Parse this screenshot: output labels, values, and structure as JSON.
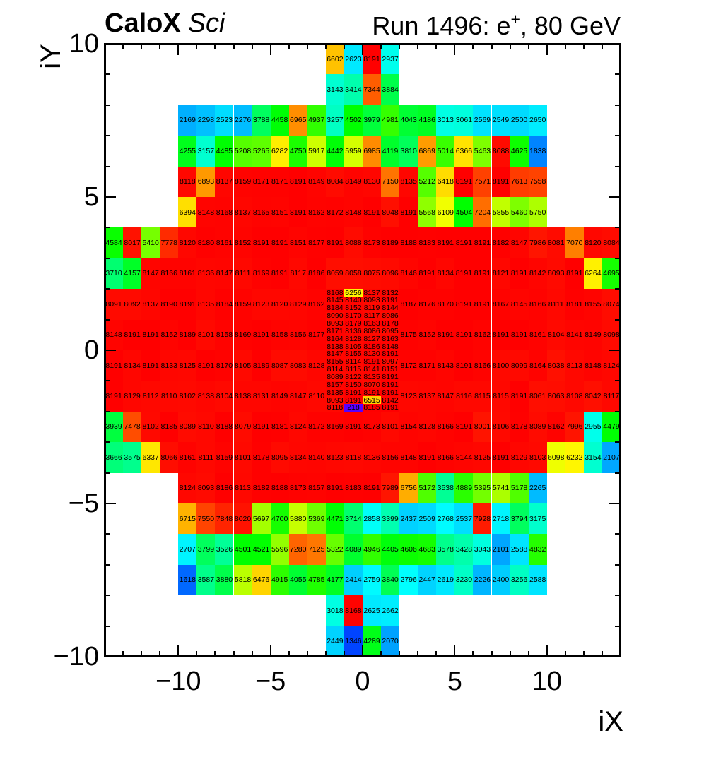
{
  "titles": {
    "left_bold": "CaloX",
    "left_italic": "Sci",
    "right_pre": "Run 1496: e",
    "right_sup": "+",
    "right_post": ", 80 GeV",
    "right_full": "Run 1496: e+, 80 GeV"
  },
  "axes": {
    "x": {
      "title": "iX",
      "range": [
        -14,
        14
      ],
      "tick_values": [
        -10,
        -5,
        0,
        5,
        10
      ],
      "tick_labels": [
        "−10",
        "−5",
        "0",
        "5",
        "10"
      ],
      "minor_step": 1
    },
    "y": {
      "title": "iY",
      "range": [
        -10,
        10
      ],
      "tick_values": [
        10,
        5,
        0,
        -5,
        -10
      ],
      "tick_labels": [
        "10",
        "5",
        "0",
        "−5",
        "−10"
      ],
      "minor_step": 1
    },
    "z": {
      "min": 0,
      "max": 8191
    }
  },
  "chart_data": {
    "type": "heatmap",
    "title": "CaloX Sci",
    "subtitle": "Run 1496: e+, 80 GeV",
    "xlabel": "iX",
    "ylabel": "iY",
    "x_range": [
      -14,
      14
    ],
    "y_range": [
      -10,
      10
    ],
    "z_range": [
      0,
      8191
    ],
    "grid": false,
    "palette_stops": [
      [
        0,
        268
      ],
      [
        0.1,
        240
      ],
      [
        0.2,
        215
      ],
      [
        0.3,
        190
      ],
      [
        0.35,
        178
      ],
      [
        0.42,
        160
      ],
      [
        0.48,
        135
      ],
      [
        0.55,
        120
      ],
      [
        0.62,
        105
      ],
      [
        0.7,
        80
      ],
      [
        0.76,
        58
      ],
      [
        0.82,
        42
      ],
      [
        0.87,
        28
      ],
      [
        0.93,
        14
      ],
      [
        1,
        0
      ]
    ],
    "palette_saturation": "100%",
    "palette_lightness": "50%",
    "rows": [
      {
        "iy": 9,
        "x0": -2,
        "values": [
          6602,
          2623,
          8191,
          2937
        ]
      },
      {
        "iy": 8,
        "x0": -2,
        "values": [
          3143,
          3414,
          7344,
          3884
        ]
      },
      {
        "iy": 7,
        "x0": -10,
        "values": [
          2169,
          2298,
          2523,
          2276,
          3788,
          4458,
          6965,
          4937,
          3257,
          4502,
          3979,
          4981,
          4043,
          4186,
          3013,
          3061,
          2569,
          2549,
          2500,
          2650
        ]
      },
      {
        "iy": 6,
        "x0": -10,
        "values": [
          4255,
          3157,
          4485,
          5208,
          5265,
          6282,
          4750,
          5917,
          4442,
          5959,
          6985,
          4119,
          3810,
          6869,
          5014,
          6366,
          5463,
          8088,
          4625,
          1838
        ]
      },
      {
        "iy": 5,
        "x0": -10,
        "values": [
          8118,
          6893,
          8137,
          8159,
          8171,
          8171,
          8191,
          8149,
          8084,
          8149,
          8130,
          7150,
          8135,
          5212,
          6418,
          8191,
          7571,
          8191,
          7613,
          7558
        ]
      },
      {
        "iy": 4,
        "x0": -10,
        "values": [
          6394,
          8148,
          8168,
          8137,
          8165,
          8151,
          8191,
          8162,
          8172,
          8148,
          8191,
          8048,
          8191,
          5568,
          6109,
          4504,
          7204,
          5855,
          5460,
          5750
        ]
      },
      {
        "iy": 3,
        "x0": -14,
        "values": [
          4584,
          8017,
          5410,
          7778,
          8120,
          8180,
          8161,
          8152,
          8191,
          8191,
          8151,
          8177,
          8191,
          8088,
          8173,
          8189,
          8188,
          8183,
          8191,
          8191,
          8191,
          8182,
          8147,
          7986,
          8081,
          7070,
          8120,
          8084
        ]
      },
      {
        "iy": 2,
        "x0": -14,
        "values": [
          3710,
          4157,
          8147,
          8166,
          8161,
          8136,
          8147,
          8111,
          8169,
          8191,
          8117,
          8186,
          8059,
          8058,
          8075,
          8096,
          8146,
          8191,
          8134,
          8191,
          8191,
          8121,
          8191,
          8142,
          8093,
          8191,
          6264,
          4695
        ]
      },
      {
        "iy": 1,
        "x0": -14,
        "values": [
          8091,
          8092,
          8137,
          8190,
          8191,
          8135,
          8184,
          8159,
          8123,
          8120,
          8129,
          8162
        ]
      },
      {
        "iy": 1,
        "x0": 2,
        "values": [
          8187,
          8176,
          8170,
          8191,
          8191,
          8167,
          8145,
          8166,
          8111,
          8181,
          8155,
          8074
        ]
      },
      {
        "iy": 0,
        "x0": -14,
        "values": [
          8148,
          8191,
          8191,
          8152,
          8189,
          8101,
          8158,
          8169,
          8191,
          8158,
          8156,
          8177
        ]
      },
      {
        "iy": 0,
        "x0": 2,
        "values": [
          8175,
          8152,
          8191,
          8191,
          8162,
          8191,
          8191,
          8161,
          8104,
          8141,
          8149,
          8098
        ]
      },
      {
        "iy": -1,
        "x0": -14,
        "values": [
          8191,
          8134,
          8191,
          8133,
          8125,
          8191,
          8170,
          8105,
          8189,
          8087,
          8083,
          8128
        ]
      },
      {
        "iy": -1,
        "x0": 2,
        "values": [
          8172,
          8171,
          8143,
          8191,
          8166,
          8100,
          8099,
          8164,
          8038,
          8113,
          8148,
          8124
        ]
      },
      {
        "iy": -2,
        "x0": -14,
        "values": [
          8191,
          8129,
          8112,
          8110,
          8102,
          8138,
          8104,
          8138,
          8131,
          8149,
          8147,
          8110
        ]
      },
      {
        "iy": -2,
        "x0": 2,
        "values": [
          8123,
          8137,
          8147,
          8116,
          8115,
          8115,
          8191,
          8061,
          8063,
          8108,
          8042,
          8117
        ]
      },
      {
        "iy": -3,
        "x0": -14,
        "values": [
          3939,
          7478,
          8102,
          8185,
          8089,
          8110,
          8188,
          8079,
          8191,
          8181,
          8124,
          8172,
          8169,
          8191,
          8173,
          8101,
          8154,
          8128,
          8166,
          8191,
          8001,
          8106,
          8178,
          8089,
          8162,
          7996,
          2955,
          4479
        ]
      },
      {
        "iy": -4,
        "x0": -14,
        "values": [
          3666,
          3575,
          6337,
          8066,
          8161,
          8111,
          8159,
          8101,
          8178,
          8095,
          8134,
          8140,
          8123,
          8118,
          8136,
          8156,
          8148,
          8191,
          8166,
          8144,
          8125,
          8191,
          8129,
          8103,
          6098,
          6232,
          3154,
          2107
        ]
      },
      {
        "iy": -5,
        "x0": -10,
        "values": [
          8124,
          8093,
          8186,
          8113,
          8182,
          8188,
          8173,
          8157,
          8191,
          8183,
          8191,
          7989,
          6756,
          5172,
          3538,
          4889,
          5395,
          5741,
          5178,
          2265
        ]
      },
      {
        "iy": -6,
        "x0": -10,
        "values": [
          6715,
          7550,
          7848,
          8020,
          5697,
          4700,
          5880,
          5369,
          4471,
          3714,
          2858,
          3399,
          2437,
          2509,
          2768,
          2537,
          7928,
          2718,
          3794,
          3175
        ]
      },
      {
        "iy": -7,
        "x0": -10,
        "values": [
          2707,
          3799,
          3526,
          4501,
          4521,
          5596,
          7280,
          7125,
          5322,
          4089,
          4946,
          4405,
          4606,
          4683,
          3578,
          3428,
          3043,
          2101,
          2588,
          4832
        ]
      },
      {
        "iy": -8,
        "x0": -10,
        "values": [
          1618,
          3587,
          3880,
          5818,
          6476,
          4915,
          4055,
          4785,
          4177,
          2414,
          2759,
          3840,
          2796,
          2447,
          2619,
          3230,
          2226,
          2400,
          3256,
          2588
        ]
      },
      {
        "iy": -9,
        "x0": -2,
        "values": [
          3018,
          8168,
          2625,
          2662
        ]
      },
      {
        "iy": -10,
        "x0": -2,
        "values": [
          2449,
          1346,
          4289,
          2070
        ]
      }
    ],
    "fine_region": {
      "x0": -2,
      "iy_top": 2,
      "col_w": 1,
      "row_h": 0.25,
      "rows": [
        [
          8168,
          6256,
          8137,
          8132
        ],
        [
          8145,
          8140,
          8093,
          8191
        ],
        [
          8184,
          8152,
          8119,
          8144
        ],
        [
          8090,
          8170,
          8117,
          8086
        ],
        [
          8093,
          8179,
          8163,
          8178
        ],
        [
          8171,
          8136,
          8086,
          8095
        ],
        [
          8164,
          8128,
          8127,
          8163
        ],
        [
          8138,
          8105,
          8186,
          8148
        ],
        [
          8147,
          8155,
          8130,
          8191
        ],
        [
          8155,
          8114,
          8191,
          8097
        ],
        [
          8114,
          8115,
          8141,
          8151
        ],
        [
          8089,
          8122,
          8135,
          8191
        ],
        [
          8157,
          8150,
          8070,
          8191
        ],
        [
          8135,
          8191,
          8191,
          8191
        ],
        [
          8093,
          8191,
          6515,
          8142
        ],
        [
          8118,
          218,
          8185,
          8191
        ]
      ]
    }
  }
}
